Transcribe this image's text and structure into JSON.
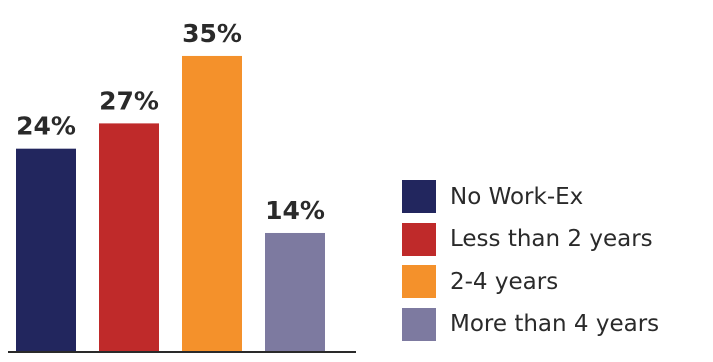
{
  "chart_data": {
    "type": "bar",
    "categories": [
      "No Work-Ex",
      "Less than 2 years",
      "2-4 years",
      "More than 4 years"
    ],
    "values": [
      24,
      27,
      35,
      14
    ],
    "data_labels": [
      "24%",
      "27%",
      "35%",
      "14%"
    ],
    "colors": [
      "#22265e",
      "#bf2a2a",
      "#f4912b",
      "#7d7aa0"
    ],
    "ylim": [
      0,
      35
    ],
    "grid": false,
    "legend_position": "right"
  },
  "legend": {
    "items": [
      {
        "label": "No Work-Ex",
        "color": "#22265e"
      },
      {
        "label": "Less than 2 years",
        "color": "#bf2a2a"
      },
      {
        "label": "2-4 years",
        "color": "#f4912b"
      },
      {
        "label": "More than 4 years",
        "color": "#7d7aa0"
      }
    ]
  }
}
